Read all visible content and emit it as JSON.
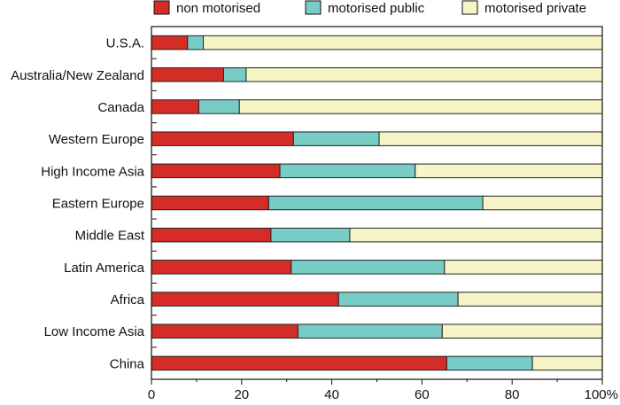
{
  "chart_data": {
    "type": "bar",
    "orientation": "horizontal",
    "stacked": true,
    "categories": [
      "U.S.A.",
      "Australia/New Zealand",
      "Canada",
      "Western Europe",
      "High Income Asia",
      "Eastern Europe",
      "Middle East",
      "Latin America",
      "Africa",
      "Low Income Asia",
      "China"
    ],
    "series": [
      {
        "name": "non motorised",
        "color": "#d42d27",
        "values": [
          8,
          16,
          10.5,
          31.5,
          28.5,
          26,
          26.5,
          31,
          41.5,
          32.5,
          65.5
        ]
      },
      {
        "name": "motorised public",
        "color": "#78ccc6",
        "values": [
          3.5,
          5,
          9,
          19,
          30,
          47.5,
          17.5,
          34,
          26.5,
          32,
          19
        ]
      },
      {
        "name": "motorised private",
        "color": "#f7f5c6",
        "values": [
          88.5,
          79,
          80.5,
          49.5,
          41.5,
          26.5,
          56,
          35,
          32,
          35.5,
          15.5
        ]
      }
    ],
    "xlim": [
      0,
      100
    ],
    "xticks": [
      "0",
      "20",
      "40",
      "60",
      "80",
      "100%"
    ],
    "legend_position": "top",
    "grid": false
  }
}
